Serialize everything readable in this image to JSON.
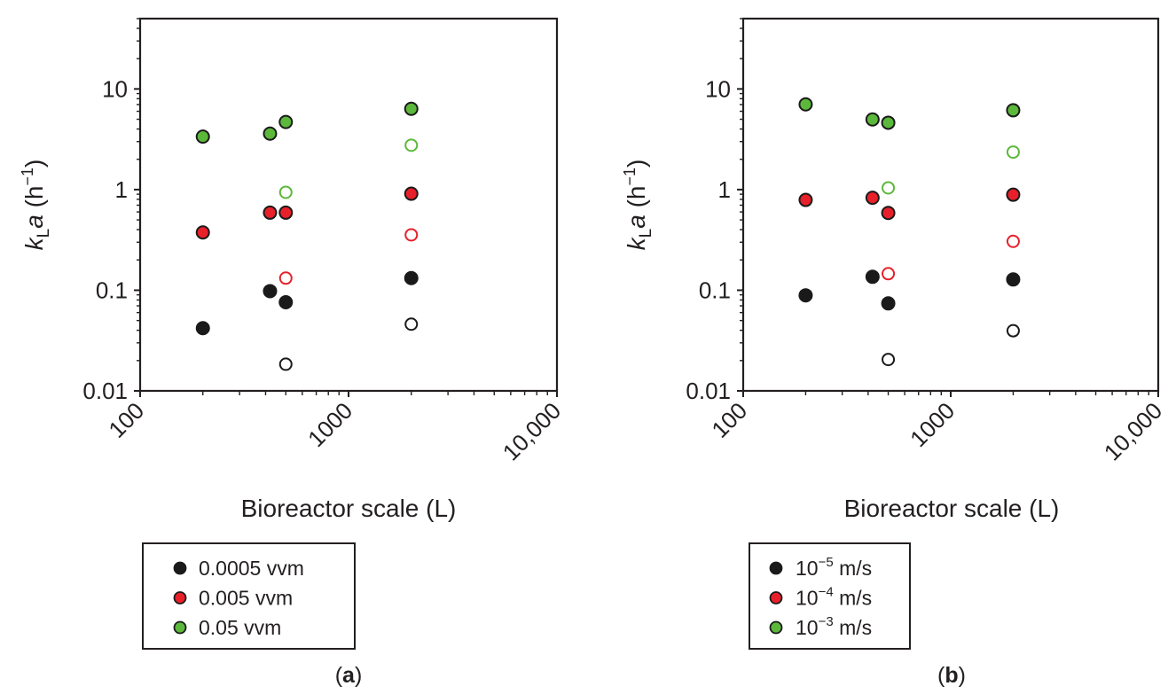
{
  "chart_data": [
    {
      "panel_label": "a",
      "type": "scatter",
      "xlabel": "Bioreactor scale (L)",
      "ylabel": {
        "k": "k",
        "sub": "L",
        "a": "a",
        "unit_base": "h",
        "unit_exp": "−1"
      },
      "x_scale": "log",
      "y_scale": "log",
      "xlim": [
        100,
        10000
      ],
      "ylim": [
        0.01,
        50
      ],
      "x_ticks": [
        100,
        1000,
        10000
      ],
      "x_tick_labels": [
        "100",
        "1000",
        "10,000"
      ],
      "y_ticks": [
        0.01,
        0.1,
        1,
        10
      ],
      "y_tick_labels": [
        "0.01",
        "0.1",
        "1",
        "10"
      ],
      "grid": false,
      "legend_placement": "below",
      "series": [
        {
          "name": "0.0005 vvm",
          "color": "#1a1a1a",
          "filled": [
            [
              200,
              0.042
            ],
            [
              420,
              0.098
            ],
            [
              500,
              0.076
            ],
            [
              2000,
              0.132
            ]
          ],
          "open": [
            [
              500,
              0.0184
            ],
            [
              2000,
              0.046
            ]
          ]
        },
        {
          "name": "0.005 vvm",
          "color": "#e8202a",
          "filled": [
            [
              200,
              0.375
            ],
            [
              420,
              0.59
            ],
            [
              500,
              0.59
            ],
            [
              2000,
              0.91
            ]
          ],
          "open": [
            [
              500,
              0.132
            ],
            [
              2000,
              0.355
            ]
          ]
        },
        {
          "name": "0.05 vvm",
          "color": "#5cb83a",
          "filled": [
            [
              200,
              3.36
            ],
            [
              420,
              3.6
            ],
            [
              500,
              4.7
            ],
            [
              2000,
              6.35
            ]
          ],
          "open": [
            [
              500,
              0.94
            ],
            [
              2000,
              2.76
            ]
          ]
        }
      ],
      "legend": [
        {
          "text": "0.0005 vvm",
          "sup": "",
          "unit": ""
        },
        {
          "text": "0.005 vvm",
          "sup": "",
          "unit": ""
        },
        {
          "text": "0.05 vvm",
          "sup": "",
          "unit": ""
        }
      ]
    },
    {
      "panel_label": "b",
      "type": "scatter",
      "xlabel": "Bioreactor scale (L)",
      "ylabel": {
        "k": "k",
        "sub": "L",
        "a": "a",
        "unit_base": "h",
        "unit_exp": "−1"
      },
      "x_scale": "log",
      "y_scale": "log",
      "xlim": [
        100,
        10000
      ],
      "ylim": [
        0.01,
        50
      ],
      "x_ticks": [
        100,
        1000,
        10000
      ],
      "x_tick_labels": [
        "100",
        "1000",
        "10,000"
      ],
      "y_ticks": [
        0.01,
        0.1,
        1,
        10
      ],
      "y_tick_labels": [
        "0.01",
        "0.1",
        "1",
        "10"
      ],
      "grid": false,
      "legend_placement": "below",
      "series": [
        {
          "name": "10−5 m/s",
          "color": "#1a1a1a",
          "filled": [
            [
              200,
              0.089
            ],
            [
              420,
              0.136
            ],
            [
              500,
              0.074
            ],
            [
              2000,
              0.128
            ]
          ],
          "open": [
            [
              500,
              0.0205
            ],
            [
              2000,
              0.0396
            ]
          ]
        },
        {
          "name": "10−4 m/s",
          "color": "#e8202a",
          "filled": [
            [
              200,
              0.79
            ],
            [
              420,
              0.83
            ],
            [
              500,
              0.586
            ],
            [
              2000,
              0.89
            ]
          ],
          "open": [
            [
              500,
              0.146
            ],
            [
              2000,
              0.306
            ]
          ]
        },
        {
          "name": "10−3 m/s",
          "color": "#5cb83a",
          "filled": [
            [
              200,
              7.03
            ],
            [
              420,
              4.98
            ],
            [
              500,
              4.62
            ],
            [
              2000,
              6.14
            ]
          ],
          "open": [
            [
              500,
              1.04
            ],
            [
              2000,
              2.36
            ]
          ]
        }
      ],
      "legend": [
        {
          "text": "10",
          "sup": "−5",
          "unit": " m/s"
        },
        {
          "text": "10",
          "sup": "−4",
          "unit": " m/s"
        },
        {
          "text": "10",
          "sup": "−3",
          "unit": " m/s"
        }
      ]
    }
  ]
}
